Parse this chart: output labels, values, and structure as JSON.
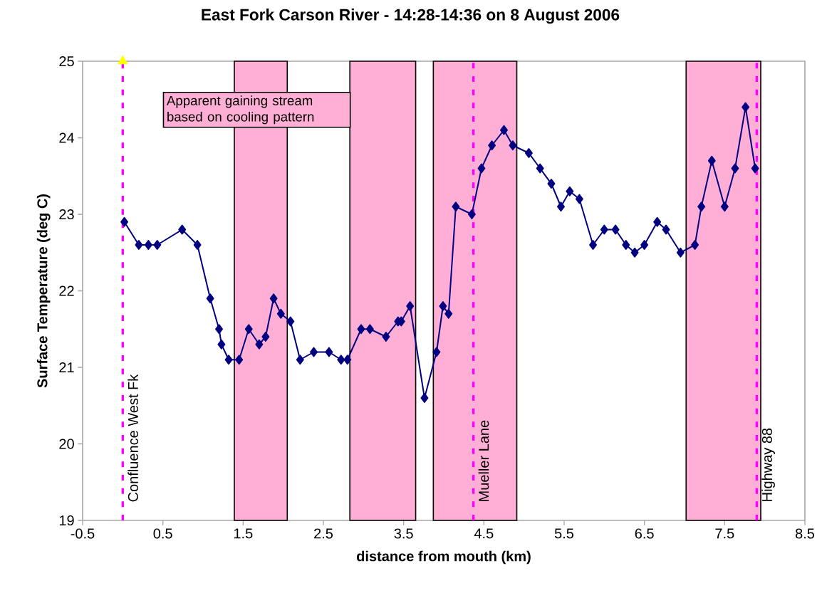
{
  "chart_data": {
    "type": "line",
    "title": "East Fork Carson River - 14:28-14:36 on 8 August 2006",
    "xlabel": "distance from mouth (km)",
    "ylabel": "Surface Temperature (deg C)",
    "xlim": [
      -0.5,
      8.5
    ],
    "xticks": [
      -0.5,
      0.5,
      1.5,
      2.5,
      3.5,
      4.5,
      5.5,
      6.5,
      7.5,
      8.5
    ],
    "ylim": [
      19,
      25
    ],
    "yticks": [
      19,
      20,
      21,
      22,
      23,
      24,
      25
    ],
    "grid": false,
    "series": [
      {
        "color": "#000080",
        "marker": "diamond",
        "line_style": "solid",
        "x": [
          0.02,
          0.2,
          0.32,
          0.43,
          0.74,
          0.93,
          1.09,
          1.2,
          1.23,
          1.32,
          1.45,
          1.57,
          1.7,
          1.78,
          1.88,
          1.97,
          2.09,
          2.21,
          2.38,
          2.57,
          2.72,
          2.8,
          2.97,
          3.08,
          3.28,
          3.43,
          3.47,
          3.58,
          3.76,
          3.91,
          3.99,
          4.06,
          4.15,
          4.35,
          4.47,
          4.6,
          4.75,
          4.86,
          5.06,
          5.2,
          5.34,
          5.46,
          5.57,
          5.69,
          5.86,
          6.0,
          6.14,
          6.27,
          6.38,
          6.5,
          6.66,
          6.77,
          6.95,
          7.13,
          7.21,
          7.34,
          7.5,
          7.63,
          7.76,
          7.88
        ],
        "values": [
          22.9,
          22.6,
          22.6,
          22.6,
          22.8,
          22.6,
          21.9,
          21.5,
          21.3,
          21.1,
          21.1,
          21.5,
          21.3,
          21.4,
          21.9,
          21.7,
          21.6,
          21.1,
          21.2,
          21.2,
          21.1,
          21.1,
          21.5,
          21.5,
          21.4,
          21.6,
          21.6,
          21.8,
          20.6,
          21.2,
          21.8,
          21.7,
          23.1,
          23.0,
          23.6,
          23.9,
          24.1,
          23.9,
          23.8,
          23.6,
          23.4,
          23.1,
          23.3,
          23.2,
          22.6,
          22.8,
          22.8,
          22.6,
          22.5,
          22.6,
          22.9,
          22.8,
          22.5,
          22.6,
          23.1,
          23.7,
          23.1,
          23.6,
          24.4,
          23.6
        ]
      },
      {
        "type": "scatter",
        "color": "#ffff00",
        "marker": "triangle",
        "x": [
          0.0
        ],
        "values": [
          25
        ]
      }
    ],
    "ref_lines": [
      {
        "axis": "x",
        "value": 0.0,
        "label": "Confluence West Fk",
        "color": "#ff00ff",
        "line_style": "dashed"
      },
      {
        "axis": "x",
        "value": 4.37,
        "label": "Mueller Lane",
        "color": "#ff00ff",
        "line_style": "dashed"
      },
      {
        "axis": "x",
        "value": 7.9,
        "label": "Highway 88",
        "color": "#ff00ff",
        "line_style": "dashed"
      }
    ],
    "bands": [
      {
        "axis": "x",
        "from": 1.39,
        "to": 2.05,
        "color": "#ffaed6"
      },
      {
        "axis": "x",
        "from": 2.83,
        "to": 3.65,
        "color": "#ffaed6"
      },
      {
        "axis": "x",
        "from": 3.87,
        "to": 4.91,
        "color": "#ffaed6"
      },
      {
        "axis": "x",
        "from": 7.02,
        "to": 7.95,
        "color": "#ffaed6"
      }
    ],
    "annotations": [
      "Apparent gaining stream based on cooling pattern"
    ]
  }
}
